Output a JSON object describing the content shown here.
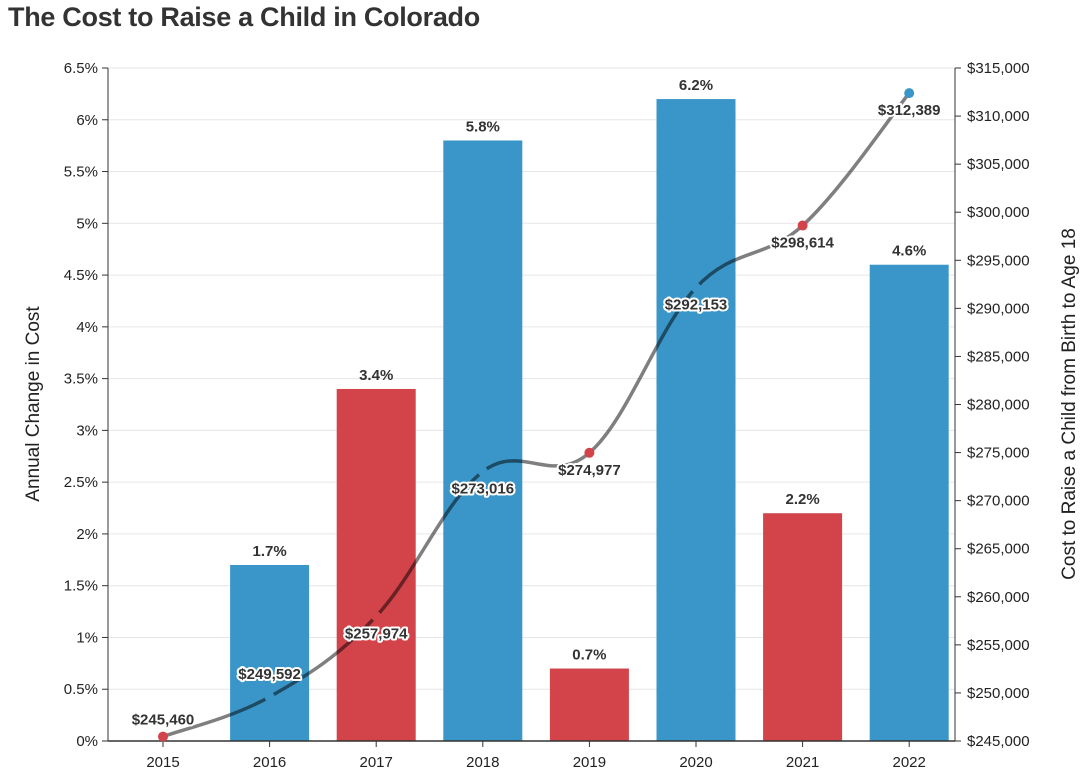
{
  "title": "The Cost to Raise a Child in Colorado",
  "colors": {
    "increase": "#3a96c8",
    "decrease": "#d2434a",
    "line": "#7f7f7f",
    "grid": "#e6e6e6"
  },
  "chart_data": {
    "type": "bar",
    "title": "The Cost to Raise a Child in Colorado",
    "categories": [
      "2015",
      "2016",
      "2017",
      "2018",
      "2019",
      "2020",
      "2021",
      "2022"
    ],
    "series": [
      {
        "axis": "left",
        "type": "bar",
        "values": [
          0,
          1.7,
          3.4,
          5.8,
          0.7,
          6.2,
          2.2,
          4.6
        ],
        "labels": [
          "",
          "1.7%",
          "3.4%",
          "5.8%",
          "0.7%",
          "6.2%",
          "2.2%",
          "4.6%"
        ],
        "bar_colors": [
          "decrease",
          "increase",
          "decrease",
          "increase",
          "decrease",
          "increase",
          "decrease",
          "increase"
        ]
      },
      {
        "axis": "right",
        "type": "line",
        "values": [
          245460,
          249592,
          257974,
          273016,
          274977,
          292153,
          298614,
          312389
        ],
        "labels": [
          "$245,460",
          "$249,592",
          "$257,974",
          "$273,016",
          "$274,977",
          "$292,153",
          "$298,614",
          "$312,389"
        ],
        "point_colors": [
          "decrease",
          "increase",
          "decrease",
          "increase",
          "decrease",
          "increase",
          "decrease",
          "increase"
        ]
      }
    ],
    "ylabel": "Annual Change in Cost",
    "y2label": "Cost to Raise a Child from Birth to Age 18",
    "ylim": [
      0,
      6.5
    ],
    "y2lim": [
      245000,
      315000
    ],
    "yticks": [
      "0%",
      "0.5%",
      "1%",
      "1.5%",
      "2%",
      "2.5%",
      "3%",
      "3.5%",
      "4%",
      "4.5%",
      "5%",
      "5.5%",
      "6%",
      "6.5%"
    ],
    "y2ticks": [
      "$245,000",
      "$250,000",
      "$255,000",
      "$260,000",
      "$265,000",
      "$270,000",
      "$275,000",
      "$280,000",
      "$285,000",
      "$290,000",
      "$295,000",
      "$300,000",
      "$305,000",
      "$310,000",
      "$315,000"
    ],
    "grid": true,
    "legend": "none"
  }
}
